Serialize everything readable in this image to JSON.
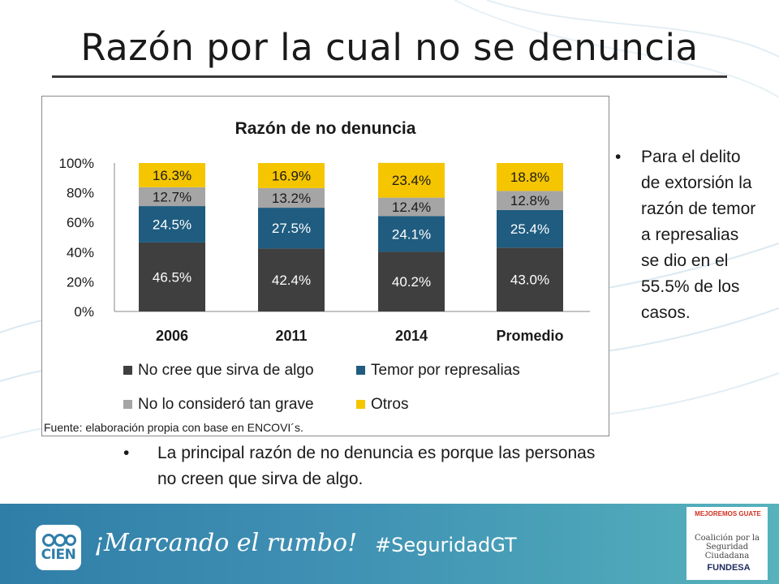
{
  "slide": {
    "title": "Razón por la cual no se denuncia"
  },
  "chart_data": {
    "type": "bar",
    "stacked": true,
    "title": "Razón de no denuncia",
    "categories": [
      "2006",
      "2011",
      "2014",
      "Promedio"
    ],
    "series": [
      {
        "name": "No cree que sirva de algo",
        "color": "#3f3f3f",
        "values": [
          46.5,
          42.4,
          40.2,
          43.0
        ],
        "labels": [
          "46.5%",
          "42.4%",
          "40.2%",
          "43.0%"
        ]
      },
      {
        "name": "Temor por represalias",
        "color": "#1f5c80",
        "values": [
          24.5,
          27.5,
          24.1,
          25.4
        ],
        "labels": [
          "24.5%",
          "27.5%",
          "24.1%",
          "25.4%"
        ]
      },
      {
        "name": "No lo consideró tan grave",
        "color": "#a5a5a5",
        "values": [
          12.7,
          13.2,
          12.4,
          12.8
        ],
        "labels": [
          "12.7%",
          "13.2%",
          "12.4%",
          "12.8%"
        ]
      },
      {
        "name": "Otros",
        "color": "#f5c500",
        "values": [
          16.3,
          16.9,
          23.4,
          18.8
        ],
        "labels": [
          "16.3%",
          "16.9%",
          "23.4%",
          "18.8%"
        ]
      }
    ],
    "yticks": [
      "0%",
      "20%",
      "40%",
      "60%",
      "80%",
      "100%"
    ],
    "ylim": [
      0,
      100
    ],
    "grid": false,
    "legend_position": "bottom",
    "source": "Fuente: elaboración propia con base en ENCOVI´s."
  },
  "bullets": {
    "right_marker": "•",
    "right_text": "Para el delito de extorsión la razón de temor a represalias se dio en el 55.5% de los casos.",
    "bottom_marker": "•",
    "bottom_text": "La principal razón de no denuncia es porque las personas no creen que sirva de algo."
  },
  "footer": {
    "logo_text": "CIEN",
    "slogan": "¡Marcando el rumbo!",
    "hashtag": "#SeguridadGT",
    "partner_top": "MEJOREMOS GUATE",
    "partner_coalition": "Coalición por la Seguridad Ciudadana",
    "partner_fundesa": "FUNDESA"
  },
  "colors": {
    "footer_start": "#2f7ea8",
    "footer_end": "#57b2bc"
  }
}
